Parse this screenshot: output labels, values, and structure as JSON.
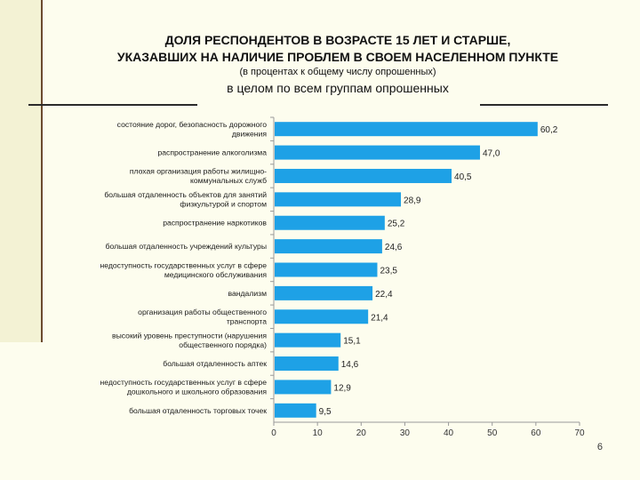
{
  "slide": {
    "title_line1": "ДОЛЯ РЕСПОНДЕНТОВ В ВОЗРАСТЕ 15 ЛЕТ И СТАРШЕ,",
    "title_line2": "УКАЗАВШИХ НА НАЛИЧИЕ ПРОБЛЕМ В СВОЕМ НАСЕЛЕННОМ ПУНКТЕ",
    "subtitle": "(в процентах к общему числу опрошенных)",
    "section": "в целом по всем группам опрошенных",
    "page_number": "6"
  },
  "chart_data": {
    "type": "bar",
    "orientation": "horizontal",
    "title": "",
    "xlabel": "",
    "ylabel": "",
    "xlim": [
      0,
      70
    ],
    "ticks": [
      0,
      10,
      20,
      30,
      40,
      50,
      60,
      70
    ],
    "grid": false,
    "bar_color": "#1ea1e6",
    "categories": [
      [
        "состояние дорог, безопасность дорожного",
        "движения"
      ],
      [
        "распространение алкоголизма"
      ],
      [
        "плохая организация работы жилищно-",
        "коммунальных служб"
      ],
      [
        "большая отдаленность объектов для занятий",
        "физкультурой и спортом"
      ],
      [
        "распространение наркотиков"
      ],
      [
        "большая  отдаленность учреждений культуры"
      ],
      [
        "недоступность государственных услуг в сфере",
        "медицинского обслуживания"
      ],
      [
        "вандализм"
      ],
      [
        "организация  работы общественного",
        "транспорта"
      ],
      [
        "высокий уровень преступности (нарушения",
        "общественного порядка)"
      ],
      [
        "большая отдаленность аптек"
      ],
      [
        "недоступность государственных услуг в сфере",
        "дошкольного и школьного образования"
      ],
      [
        "большая отдаленность торговых точек"
      ]
    ],
    "values": [
      60.2,
      47.0,
      40.5,
      28.9,
      25.2,
      24.6,
      23.5,
      22.4,
      21.4,
      15.1,
      14.6,
      12.9,
      9.5
    ],
    "value_labels": [
      "60,2",
      "47,0",
      "40,5",
      "28,9",
      "25,2",
      "24,6",
      "23,5",
      "22,4",
      "21,4",
      "15,1",
      "14,6",
      "12,9",
      "9,5"
    ]
  }
}
